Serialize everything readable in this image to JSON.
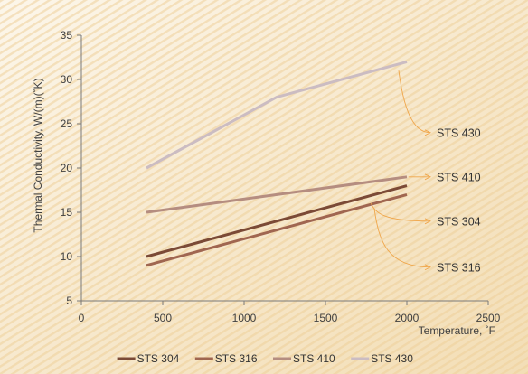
{
  "colors": {
    "background_light": "#faf1dd",
    "background_stripe": "#efcf98",
    "axis": "#7a7a7a",
    "callout": "#f0a64a"
  },
  "chart_data": {
    "type": "line",
    "xlabel": "Temperature, ˚F",
    "ylabel": "Thermal Conductivity, W/(m)(˚K)",
    "xlim": [
      0,
      2500
    ],
    "ylim": [
      5,
      35
    ],
    "x_ticks": [
      0,
      500,
      1000,
      1500,
      2000,
      2500
    ],
    "y_ticks": [
      5,
      10,
      15,
      20,
      25,
      30,
      35
    ],
    "grid": "none",
    "legend_position": "bottom",
    "series": [
      {
        "name": "STS 304",
        "color": "#7b4a36",
        "points": [
          [
            400,
            10
          ],
          [
            2000,
            18
          ]
        ]
      },
      {
        "name": "STS 316",
        "color": "#a06650",
        "points": [
          [
            400,
            9
          ],
          [
            2000,
            17
          ]
        ]
      },
      {
        "name": "STS 410",
        "color": "#b58d80",
        "points": [
          [
            400,
            15
          ],
          [
            2000,
            19
          ]
        ]
      },
      {
        "name": "STS 430",
        "color": "#cbbcc2",
        "points": [
          [
            400,
            20
          ],
          [
            1200,
            28
          ],
          [
            2000,
            32
          ]
        ]
      }
    ],
    "annotations": [
      {
        "text": "STS 430",
        "series": "STS 430",
        "anchor": [
          1950,
          31
        ],
        "label_at": [
          2200,
          24
        ]
      },
      {
        "text": "STS 410",
        "series": "STS 410",
        "anchor": [
          2010,
          19
        ],
        "label_at": [
          2200,
          19
        ]
      },
      {
        "text": "STS 304",
        "series": "STS 304",
        "anchor": [
          1780,
          16
        ],
        "label_at": [
          2200,
          14
        ]
      },
      {
        "text": "STS 316",
        "series": "STS 316",
        "anchor": [
          1800,
          15.4
        ],
        "label_at": [
          2200,
          8.8
        ]
      }
    ]
  }
}
